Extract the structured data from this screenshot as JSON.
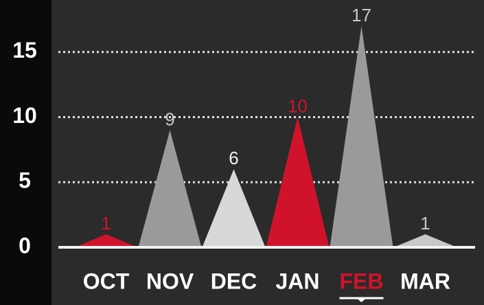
{
  "chart_data": {
    "type": "peak",
    "categories": [
      "OCT",
      "NOV",
      "DEC",
      "JAN",
      "FEB",
      "MAR"
    ],
    "values": [
      1,
      9,
      6,
      10,
      17,
      1
    ],
    "colors": [
      "#d0132b",
      "#9a9a9a",
      "#d8d8d8",
      "#d0132b",
      "#9a9a9a",
      "#c8c8c8"
    ],
    "value_label_colors": [
      "#d0132b",
      "#c8c8c8",
      "#f2f2f2",
      "#d0132b",
      "#c8c8c8",
      "#c8c8c8"
    ],
    "category_colors": [
      "#ffffff",
      "#ffffff",
      "#ffffff",
      "#ffffff",
      "#d0132b",
      "#ffffff"
    ],
    "underlined_category": 4,
    "ylim": [
      0,
      19
    ],
    "yticks": [
      0,
      5,
      10,
      15
    ],
    "grid": true
  }
}
